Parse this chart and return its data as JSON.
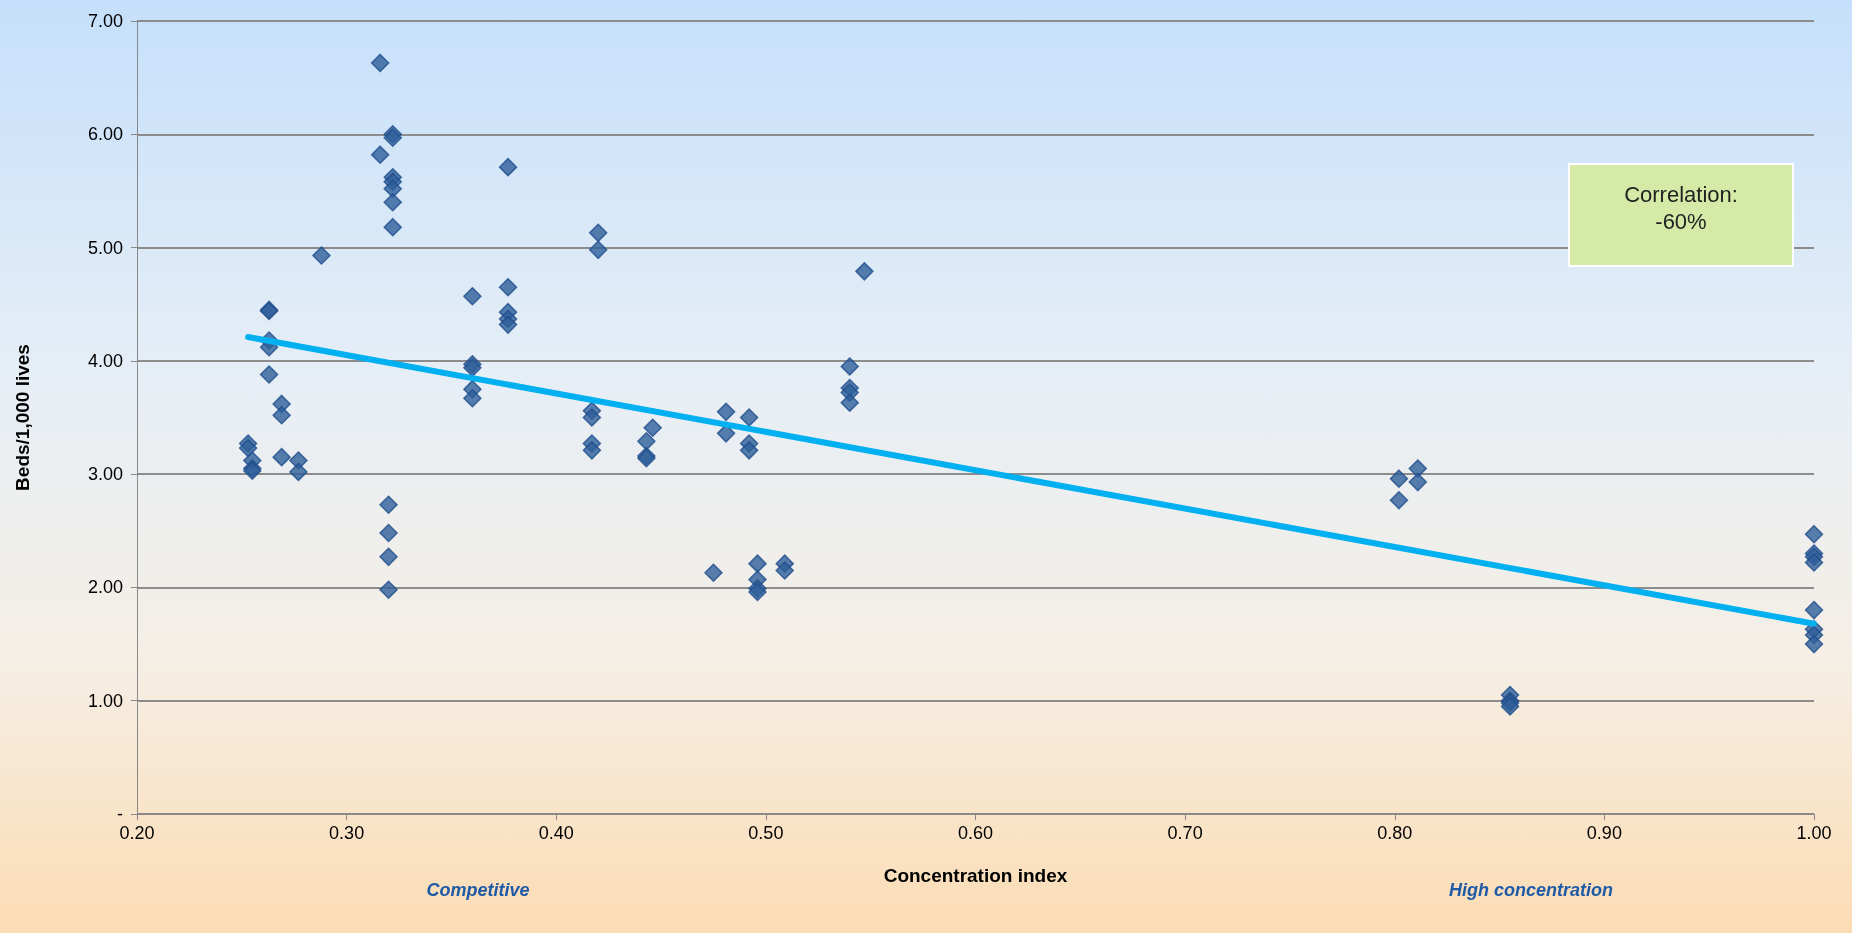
{
  "chart_data": {
    "type": "scatter",
    "xlabel": "Concentration index",
    "ylabel": "Beds/1,000 lives",
    "annotations": [
      "Correlation: -60%",
      "Competitive",
      "High concentration"
    ],
    "xlim": [
      0.2,
      1.0
    ],
    "xticks": [
      {
        "value": 0.2,
        "label": "0.20"
      },
      {
        "value": 0.3,
        "label": "0.30"
      },
      {
        "value": 0.4,
        "label": "0.40"
      },
      {
        "value": 0.5,
        "label": "0.50"
      },
      {
        "value": 0.6,
        "label": "0.60"
      },
      {
        "value": 0.7,
        "label": "0.70"
      },
      {
        "value": 0.8,
        "label": "0.80"
      },
      {
        "value": 0.9,
        "label": "0.90"
      },
      {
        "value": 1.0,
        "label": "1.00"
      }
    ],
    "ylim": [
      0,
      7
    ],
    "yticks": [
      {
        "value": 0,
        "label": "-"
      },
      {
        "value": 1,
        "label": "1.00"
      },
      {
        "value": 2,
        "label": "2.00"
      },
      {
        "value": 3,
        "label": "3.00"
      },
      {
        "value": 4,
        "label": "4.00"
      },
      {
        "value": 5,
        "label": "5.00"
      },
      {
        "value": 6,
        "label": "6.00"
      },
      {
        "value": 7,
        "label": "7.00"
      }
    ],
    "grid": "y",
    "marker": "diamond",
    "series": [
      {
        "color": "#2e5f9a",
        "x": [
          0.253,
          0.253,
          0.255,
          0.255,
          0.255,
          0.263,
          0.263,
          0.263,
          0.263,
          0.263,
          0.269,
          0.269,
          0.269,
          0.277,
          0.277,
          0.288,
          0.316,
          0.316,
          0.322,
          0.322,
          0.322,
          0.322,
          0.322,
          0.322,
          0.322,
          0.32,
          0.32,
          0.32,
          0.32,
          0.36,
          0.36,
          0.36,
          0.36,
          0.36,
          0.377,
          0.377,
          0.377,
          0.377,
          0.377,
          0.417,
          0.417,
          0.417,
          0.417,
          0.42,
          0.42,
          0.443,
          0.443,
          0.443,
          0.446,
          0.475,
          0.481,
          0.481,
          0.492,
          0.492,
          0.492,
          0.496,
          0.496,
          0.496,
          0.496,
          0.509,
          0.509,
          0.54,
          0.54,
          0.54,
          0.54,
          0.547,
          0.802,
          0.802,
          0.811,
          0.811,
          0.855,
          0.855,
          0.855,
          0.855,
          1.0,
          1.0,
          1.0,
          1.0,
          1.0,
          1.0,
          1.0,
          1.0
        ],
        "values": [
          3.27,
          3.23,
          3.12,
          3.05,
          3.03,
          4.45,
          4.44,
          4.18,
          4.12,
          3.88,
          3.62,
          3.52,
          3.15,
          3.12,
          3.02,
          4.93,
          6.63,
          5.82,
          6.0,
          5.97,
          5.62,
          5.58,
          5.52,
          5.4,
          5.18,
          2.73,
          2.48,
          2.27,
          1.98,
          4.57,
          3.97,
          3.94,
          3.75,
          3.67,
          5.71,
          4.65,
          4.43,
          4.37,
          4.32,
          3.56,
          3.5,
          3.27,
          3.21,
          5.13,
          4.98,
          3.29,
          3.16,
          3.14,
          3.41,
          2.13,
          3.55,
          3.36,
          3.5,
          3.27,
          3.21,
          2.21,
          2.07,
          1.99,
          1.96,
          2.21,
          2.15,
          3.95,
          3.76,
          3.72,
          3.63,
          4.79,
          2.96,
          2.77,
          3.05,
          2.93,
          1.05,
          1.0,
          0.98,
          0.95,
          2.47,
          2.3,
          2.27,
          2.22,
          1.8,
          1.63,
          1.58,
          1.5
        ]
      },
      {
        "type": "line",
        "color": "#00b0f0",
        "marker": "none",
        "line_style": "solid",
        "x": [
          0.253,
          1.0
        ],
        "values": [
          4.21,
          1.68
        ]
      }
    ]
  }
}
